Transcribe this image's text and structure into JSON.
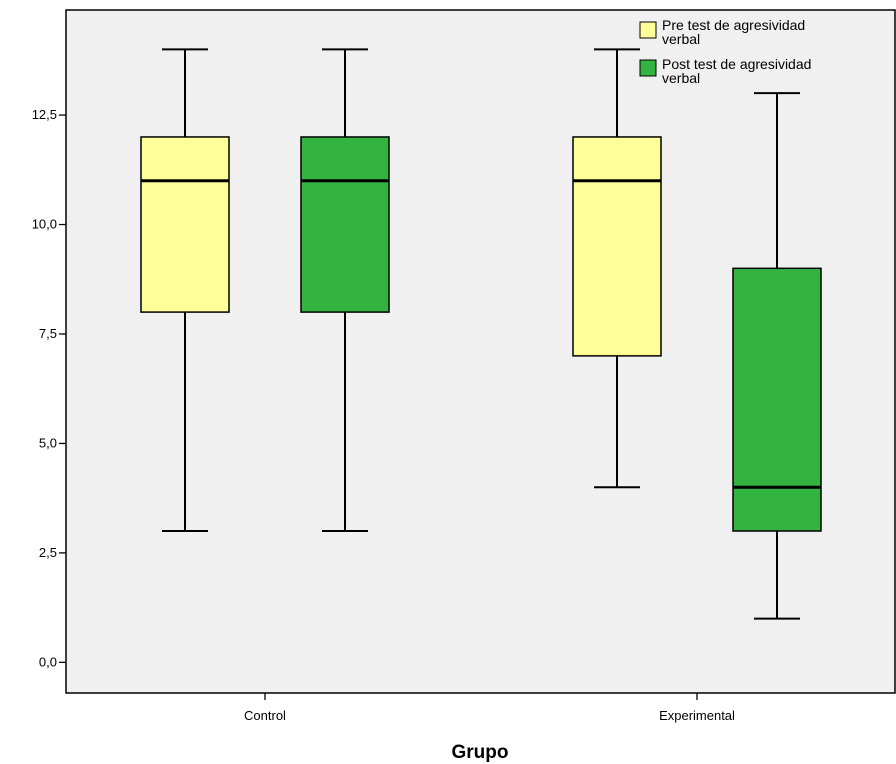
{
  "chart_data": {
    "type": "boxplot",
    "title": "",
    "xlabel": "Grupo",
    "ylabel": "",
    "ylim": [
      -0.7,
      14.9
    ],
    "yticks": [
      0.0,
      2.5,
      5.0,
      7.5,
      10.0,
      12.5
    ],
    "ytick_labels": [
      "0,0",
      "2,5",
      "5,0",
      "7,5",
      "10,0",
      "12,5"
    ],
    "categories": [
      "Control",
      "Experimental"
    ],
    "series": [
      {
        "name": "Pre test de agresividad verbal",
        "color": "#ffff99",
        "boxes": [
          {
            "whisker_low": 3,
            "q1": 8,
            "median": 11,
            "q3": 12,
            "whisker_high": 14
          },
          {
            "whisker_low": 4,
            "q1": 7,
            "median": 11,
            "q3": 12,
            "whisker_high": 14
          }
        ]
      },
      {
        "name": "Post test de agresividad verbal",
        "color": "#33b340",
        "boxes": [
          {
            "whisker_low": 3,
            "q1": 8,
            "median": 11,
            "q3": 12,
            "whisker_high": 14
          },
          {
            "whisker_low": 1,
            "q1": 3,
            "median": 4,
            "q3": 9,
            "whisker_high": 13
          }
        ]
      }
    ],
    "legend": {
      "placement": "top-right",
      "entries": [
        {
          "line1": "Pre test de agresividad",
          "line2": "verbal",
          "color": "#ffff99"
        },
        {
          "line1": "Post test de agresividad",
          "line2": "verbal",
          "color": "#33b340"
        }
      ]
    },
    "plot_background": "#f0f0f0",
    "grid": false
  }
}
